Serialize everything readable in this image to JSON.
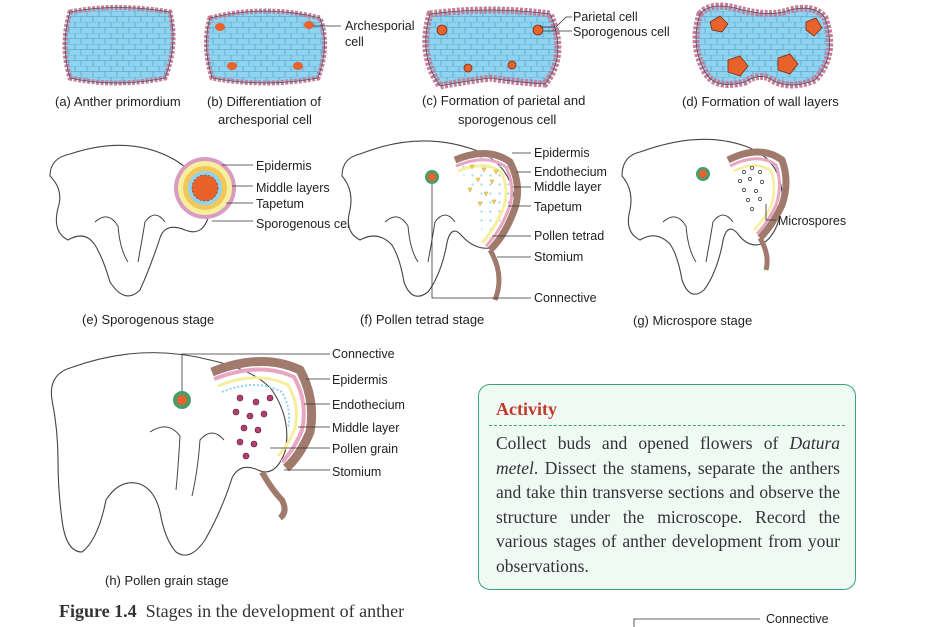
{
  "captions": {
    "a": "(a) Anther primordium",
    "b_line1": "(b) Differentiation of",
    "b_line2": "archesporial cell",
    "c_line1": "(c) Formation of parietal and",
    "c_line2": "sporogenous cell",
    "d": "(d) Formation of wall layers",
    "e": "(e) Sporogenous stage",
    "f": "(f) Pollen tetrad stage",
    "g": "(g) Microspore stage",
    "h": "(h) Pollen grain stage"
  },
  "labels": {
    "archesporial_1": "Archesporial",
    "archesporial_2": "cell",
    "parietal_cell": "Parietal cell",
    "sporogenous_cell_c": "Sporogenous cell",
    "e_epidermis": "Epidermis",
    "e_middle_layers": "Middle layers",
    "e_tapetum": "Tapetum",
    "e_sporogenous_cell": "Sporogenous cell",
    "f_epidermis": "Epidermis",
    "f_endothecium": "Endothecium",
    "f_middle_layer": "Middle layer",
    "f_tapetum": "Tapetum",
    "f_pollen_tetrad": "Pollen tetrad",
    "f_stomium": "Stomium",
    "f_connective": "Connective",
    "g_microspores": "Microspores",
    "h_connective": "Connective",
    "h_epidermis": "Epidermis",
    "h_endothecium": "Endothecium",
    "h_middle_layer": "Middle layer",
    "h_pollen_grain": "Pollen grain",
    "h_stomium": "Stomium",
    "bottom_connective": "Connective"
  },
  "activity": {
    "title": "Activity",
    "text_1": "Collect buds and opened flowers of ",
    "text_italic": "Datura metel",
    "text_2": ". Dissect  the stamens, separate the anthers and take thin transverse sections and observe the structure under the microscope. Record the  various stages of anther development from your observations."
  },
  "figure": {
    "number": "Figure 1.4",
    "title": "Stages in the development of anther"
  },
  "colors": {
    "cell_blue": "#8fd3f0",
    "epidermis_pink": "#e8a6c0",
    "archesporial_orange": "#e8632b",
    "tapetum_yellow": "#f6ee9a",
    "wall_brown": "#a07a6c",
    "activity_border": "#3aa37c",
    "activity_bg": "#effaf4",
    "activity_title": "#c0392b"
  }
}
